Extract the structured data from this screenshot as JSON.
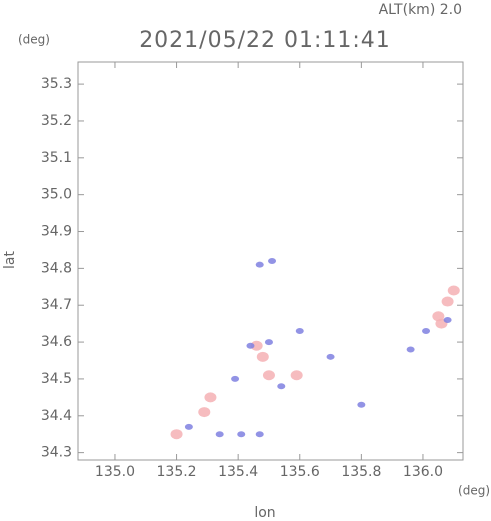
{
  "chart_data": {
    "type": "scatter",
    "corner_label": "ALT(km) 2.0",
    "title": "2021/05/22 01:11:41",
    "y_unit": "(deg)",
    "x_unit": "(deg)",
    "y_label": "lat",
    "x_label": "lon",
    "xlim": [
      134.88,
      136.13
    ],
    "ylim": [
      34.28,
      35.36
    ],
    "xticks": [
      {
        "value": 135.0,
        "label": "135.0"
      },
      135.2,
      135.4,
      135.6,
      135.8,
      {
        "value": 136.0,
        "label": "136.0"
      }
    ],
    "yticks": [
      34.3,
      34.4,
      34.5,
      34.6,
      34.7,
      34.8,
      34.9,
      {
        "value": 35.0,
        "label": "35.0"
      },
      35.1,
      35.2,
      35.3
    ],
    "series": [
      {
        "color": "#f4b0b4",
        "x": [
          135.2,
          135.29,
          135.31,
          135.46,
          135.48,
          135.5,
          135.59,
          136.06,
          136.05,
          136.08,
          136.1
        ],
        "y": [
          34.35,
          34.41,
          34.45,
          34.59,
          34.56,
          34.51,
          34.51,
          34.65,
          34.67,
          34.71,
          34.74
        ]
      },
      {
        "color": "#7f80e0",
        "x": [
          135.24,
          135.34,
          135.41,
          135.47,
          135.39,
          135.44,
          135.5,
          135.54,
          135.47,
          135.51,
          135.6,
          135.7,
          135.8,
          135.96,
          136.01,
          136.08
        ],
        "y": [
          34.37,
          34.35,
          34.35,
          34.35,
          34.5,
          34.59,
          34.6,
          34.48,
          34.81,
          34.82,
          34.63,
          34.56,
          34.43,
          34.58,
          34.63,
          34.66
        ]
      }
    ]
  }
}
